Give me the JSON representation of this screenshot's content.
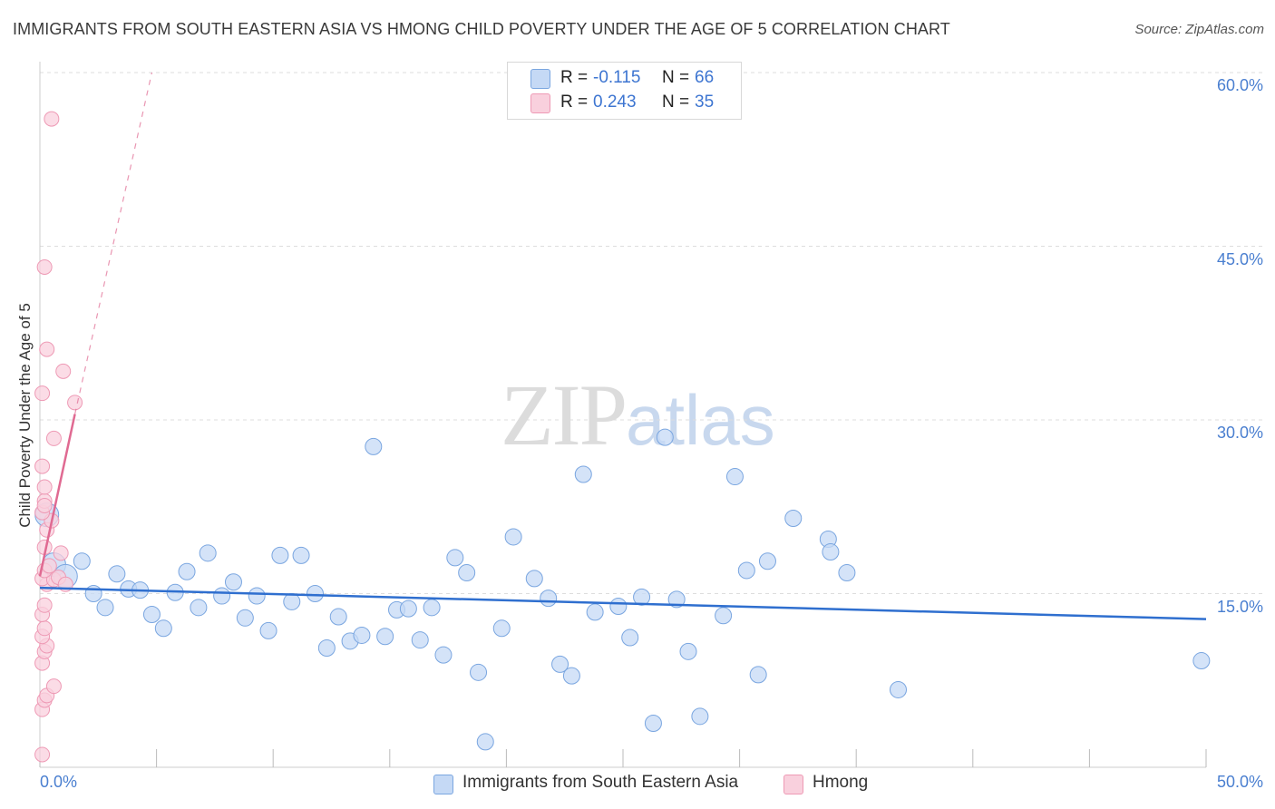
{
  "header": {
    "title": "IMMIGRANTS FROM SOUTH EASTERN ASIA VS HMONG CHILD POVERTY UNDER THE AGE OF 5 CORRELATION CHART",
    "source": "Source: ZipAtlas.com"
  },
  "watermark": {
    "zip": "ZIP",
    "atlas": "atlas"
  },
  "legend": {
    "r_label": "R =",
    "n_label": "N =",
    "series": [
      {
        "name": "Immigrants from South Eastern Asia",
        "r": "-0.115",
        "n": "66",
        "color": "#a8c8f0",
        "stroke": "#7aa6e0"
      },
      {
        "name": "Hmong",
        "r": "0.243",
        "n": "35",
        "color": "#f7b8cc",
        "stroke": "#ee8fae"
      }
    ]
  },
  "colors": {
    "blue_fill": "#c5d9f5",
    "blue_stroke": "#7aa6e0",
    "blue_line": "#2f6fcf",
    "pink_fill": "#f9d0dd",
    "pink_stroke": "#ee9ab5",
    "pink_line": "#e06a92",
    "grid": "#dddddd",
    "axis_label": "#4a7fd0"
  },
  "chart_data": {
    "type": "scatter",
    "title": "IMMIGRANTS FROM SOUTH EASTERN ASIA VS HMONG CHILD POVERTY UNDER THE AGE OF 5 CORRELATION CHART",
    "xlabel": "",
    "ylabel": "Child Poverty Under the Age of 5",
    "xlim": [
      0,
      50
    ],
    "ylim": [
      0,
      60
    ],
    "x_tick_labels": [
      "0.0%",
      "50.0%"
    ],
    "y_ticks": [
      15,
      30,
      45,
      60
    ],
    "y_tick_labels": [
      "15.0%",
      "30.0%",
      "45.0%",
      "60.0%"
    ],
    "grid": true,
    "legend_placement": "top-center",
    "series": [
      {
        "name": "Immigrants from South Eastern Asia",
        "points": [
          [
            0.3,
            21.8
          ],
          [
            0.6,
            17.5
          ],
          [
            1.1,
            16.5
          ],
          [
            1.8,
            17.8
          ],
          [
            2.3,
            15.0
          ],
          [
            2.8,
            13.8
          ],
          [
            3.3,
            16.7
          ],
          [
            3.8,
            15.4
          ],
          [
            4.3,
            15.3
          ],
          [
            4.8,
            13.2
          ],
          [
            5.3,
            12.0
          ],
          [
            5.8,
            15.1
          ],
          [
            6.3,
            16.9
          ],
          [
            6.8,
            13.8
          ],
          [
            7.2,
            18.5
          ],
          [
            7.8,
            14.8
          ],
          [
            8.3,
            16.0
          ],
          [
            8.8,
            12.9
          ],
          [
            9.3,
            14.8
          ],
          [
            9.8,
            11.8
          ],
          [
            10.3,
            18.3
          ],
          [
            10.8,
            14.3
          ],
          [
            11.2,
            18.3
          ],
          [
            11.8,
            15.0
          ],
          [
            12.3,
            10.3
          ],
          [
            12.8,
            13.0
          ],
          [
            13.3,
            10.9
          ],
          [
            13.8,
            11.4
          ],
          [
            14.3,
            27.7
          ],
          [
            14.8,
            11.3
          ],
          [
            15.3,
            13.6
          ],
          [
            15.8,
            13.7
          ],
          [
            16.3,
            11.0
          ],
          [
            16.8,
            13.8
          ],
          [
            17.3,
            9.7
          ],
          [
            17.8,
            18.1
          ],
          [
            18.3,
            16.8
          ],
          [
            18.8,
            8.2
          ],
          [
            19.1,
            2.2
          ],
          [
            19.8,
            12.0
          ],
          [
            20.3,
            19.9
          ],
          [
            21.2,
            16.3
          ],
          [
            21.8,
            14.6
          ],
          [
            22.3,
            8.9
          ],
          [
            22.8,
            7.9
          ],
          [
            23.3,
            25.3
          ],
          [
            23.8,
            13.4
          ],
          [
            24.8,
            13.9
          ],
          [
            25.3,
            11.2
          ],
          [
            25.8,
            14.7
          ],
          [
            26.3,
            3.8
          ],
          [
            26.8,
            28.5
          ],
          [
            27.3,
            14.5
          ],
          [
            27.8,
            10.0
          ],
          [
            28.3,
            4.4
          ],
          [
            29.3,
            13.1
          ],
          [
            29.8,
            25.1
          ],
          [
            30.3,
            17.0
          ],
          [
            30.8,
            8.0
          ],
          [
            31.2,
            17.8
          ],
          [
            32.3,
            21.5
          ],
          [
            33.8,
            19.7
          ],
          [
            33.9,
            18.6
          ],
          [
            34.6,
            16.8
          ],
          [
            36.8,
            6.7
          ],
          [
            49.8,
            9.2
          ]
        ],
        "trend": {
          "x": [
            0,
            50
          ],
          "y": [
            15.5,
            12.8
          ]
        }
      },
      {
        "name": "Hmong",
        "points": [
          [
            0.1,
            1.1
          ],
          [
            0.1,
            5.0
          ],
          [
            0.2,
            5.8
          ],
          [
            0.3,
            6.2
          ],
          [
            0.6,
            7.0
          ],
          [
            0.1,
            9.0
          ],
          [
            0.2,
            10.0
          ],
          [
            0.3,
            10.5
          ],
          [
            0.1,
            11.3
          ],
          [
            0.2,
            12.0
          ],
          [
            0.1,
            13.2
          ],
          [
            0.2,
            14.0
          ],
          [
            0.3,
            15.8
          ],
          [
            0.1,
            16.3
          ],
          [
            0.6,
            16.2
          ],
          [
            0.8,
            16.4
          ],
          [
            1.1,
            15.8
          ],
          [
            0.2,
            17.0
          ],
          [
            0.4,
            17.4
          ],
          [
            0.9,
            18.5
          ],
          [
            0.2,
            19.0
          ],
          [
            0.3,
            20.5
          ],
          [
            0.5,
            21.3
          ],
          [
            0.1,
            22.0
          ],
          [
            0.2,
            23.0
          ],
          [
            0.2,
            24.2
          ],
          [
            0.1,
            26.0
          ],
          [
            0.6,
            28.4
          ],
          [
            0.1,
            32.3
          ],
          [
            1.0,
            34.2
          ],
          [
            0.3,
            36.1
          ],
          [
            1.5,
            31.5
          ],
          [
            0.2,
            43.2
          ],
          [
            0.5,
            56.0
          ],
          [
            0.2,
            22.6
          ]
        ],
        "trend_solid": {
          "x": [
            0,
            1.5
          ],
          "y": [
            16.5,
            30.5
          ]
        },
        "trend_dashed": {
          "x": [
            1.5,
            4.8
          ],
          "y": [
            30.5,
            60.0
          ]
        }
      }
    ]
  }
}
